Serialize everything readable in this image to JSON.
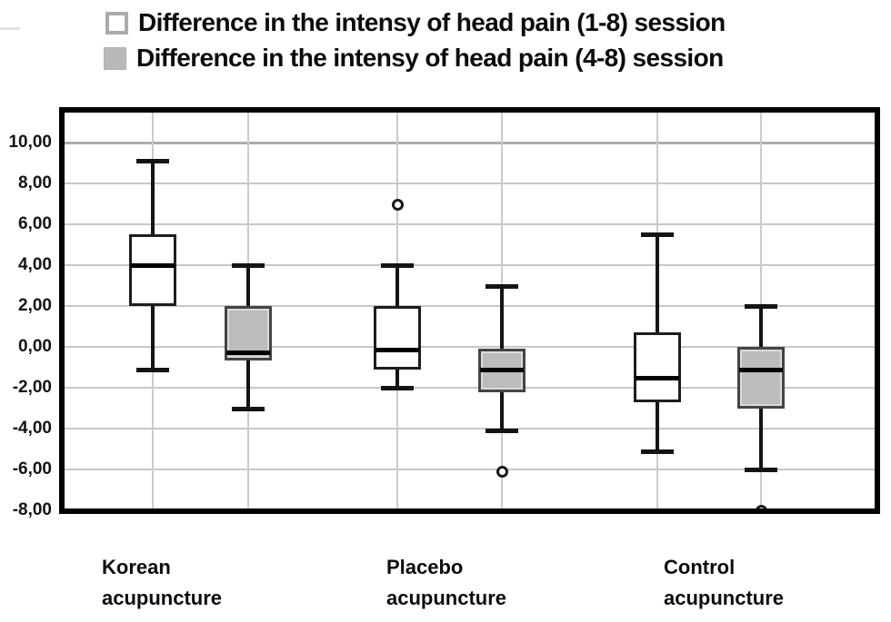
{
  "legend": {
    "items": [
      {
        "swatch": "white-box-swatch",
        "label": "Difference in the intensy of head pain (1-8) session"
      },
      {
        "swatch": "gray-box-swatch",
        "label": "Difference in the intensy of head pain (4-8) session"
      }
    ]
  },
  "colors": {
    "series1_fill": "#ffffff",
    "series2_fill": "#bcbcbc",
    "box_border": "#1d1d1d",
    "median_line": "#000000",
    "gridline": "#c7c7c7",
    "plot_border": "#000000",
    "legend_swatch_border": "#ababab",
    "text": "#0c0c0c"
  },
  "chart_data": {
    "type": "boxplot",
    "title": "",
    "legend_position": "top",
    "grid": true,
    "series": [
      {
        "name": "Difference in the intensy of head pain (1-8) session",
        "fill": "white"
      },
      {
        "name": "Difference in the intensy of head pain (4-8) session",
        "fill": "gray"
      }
    ],
    "categories": [
      "Korean\nacupuncture",
      "Placebo\nacupuncture",
      "Control\nacupuncture"
    ],
    "y_axis": {
      "tick_labels": [
        "10,00",
        "8,00",
        "6,00",
        "4,00",
        "2,00",
        "0,00",
        "-2,00",
        "-4,00",
        "-6,00",
        "-8,00"
      ],
      "tick_values": [
        10,
        8,
        6,
        4,
        2,
        0,
        -2,
        -4,
        -6,
        -8
      ],
      "min": -8,
      "max": 11.7
    },
    "boxes": [
      {
        "group": "Korean acupuncture",
        "series": "1-8",
        "whisker_low": -1.1,
        "q1": 2.0,
        "median": 4.0,
        "q3": 5.5,
        "whisker_high": 9.1,
        "outliers": []
      },
      {
        "group": "Korean acupuncture",
        "series": "4-8",
        "whisker_low": -3.0,
        "q1": -0.65,
        "median": -0.25,
        "q3": 2.0,
        "whisker_high": 4.0,
        "outliers": []
      },
      {
        "group": "Placebo acupuncture",
        "series": "1-8",
        "whisker_low": -2.0,
        "q1": -1.1,
        "median": -0.15,
        "q3": 2.0,
        "whisker_high": 4.0,
        "outliers": [
          7.0
        ]
      },
      {
        "group": "Placebo acupuncture",
        "series": "4-8",
        "whisker_low": -4.1,
        "q1": -2.2,
        "median": -1.1,
        "q3": -0.1,
        "whisker_high": 3.0,
        "outliers": [
          -6.1
        ]
      },
      {
        "group": "Control acupuncture",
        "series": "1-8",
        "whisker_low": -5.1,
        "q1": -2.7,
        "median": -1.5,
        "q3": 0.7,
        "whisker_high": 5.5,
        "outliers": []
      },
      {
        "group": "Control acupuncture",
        "series": "4-8",
        "whisker_low": -6.0,
        "q1": -3.0,
        "median": -1.1,
        "q3": 0.0,
        "whisker_high": 2.0,
        "outliers": [
          -8.0
        ]
      }
    ]
  }
}
